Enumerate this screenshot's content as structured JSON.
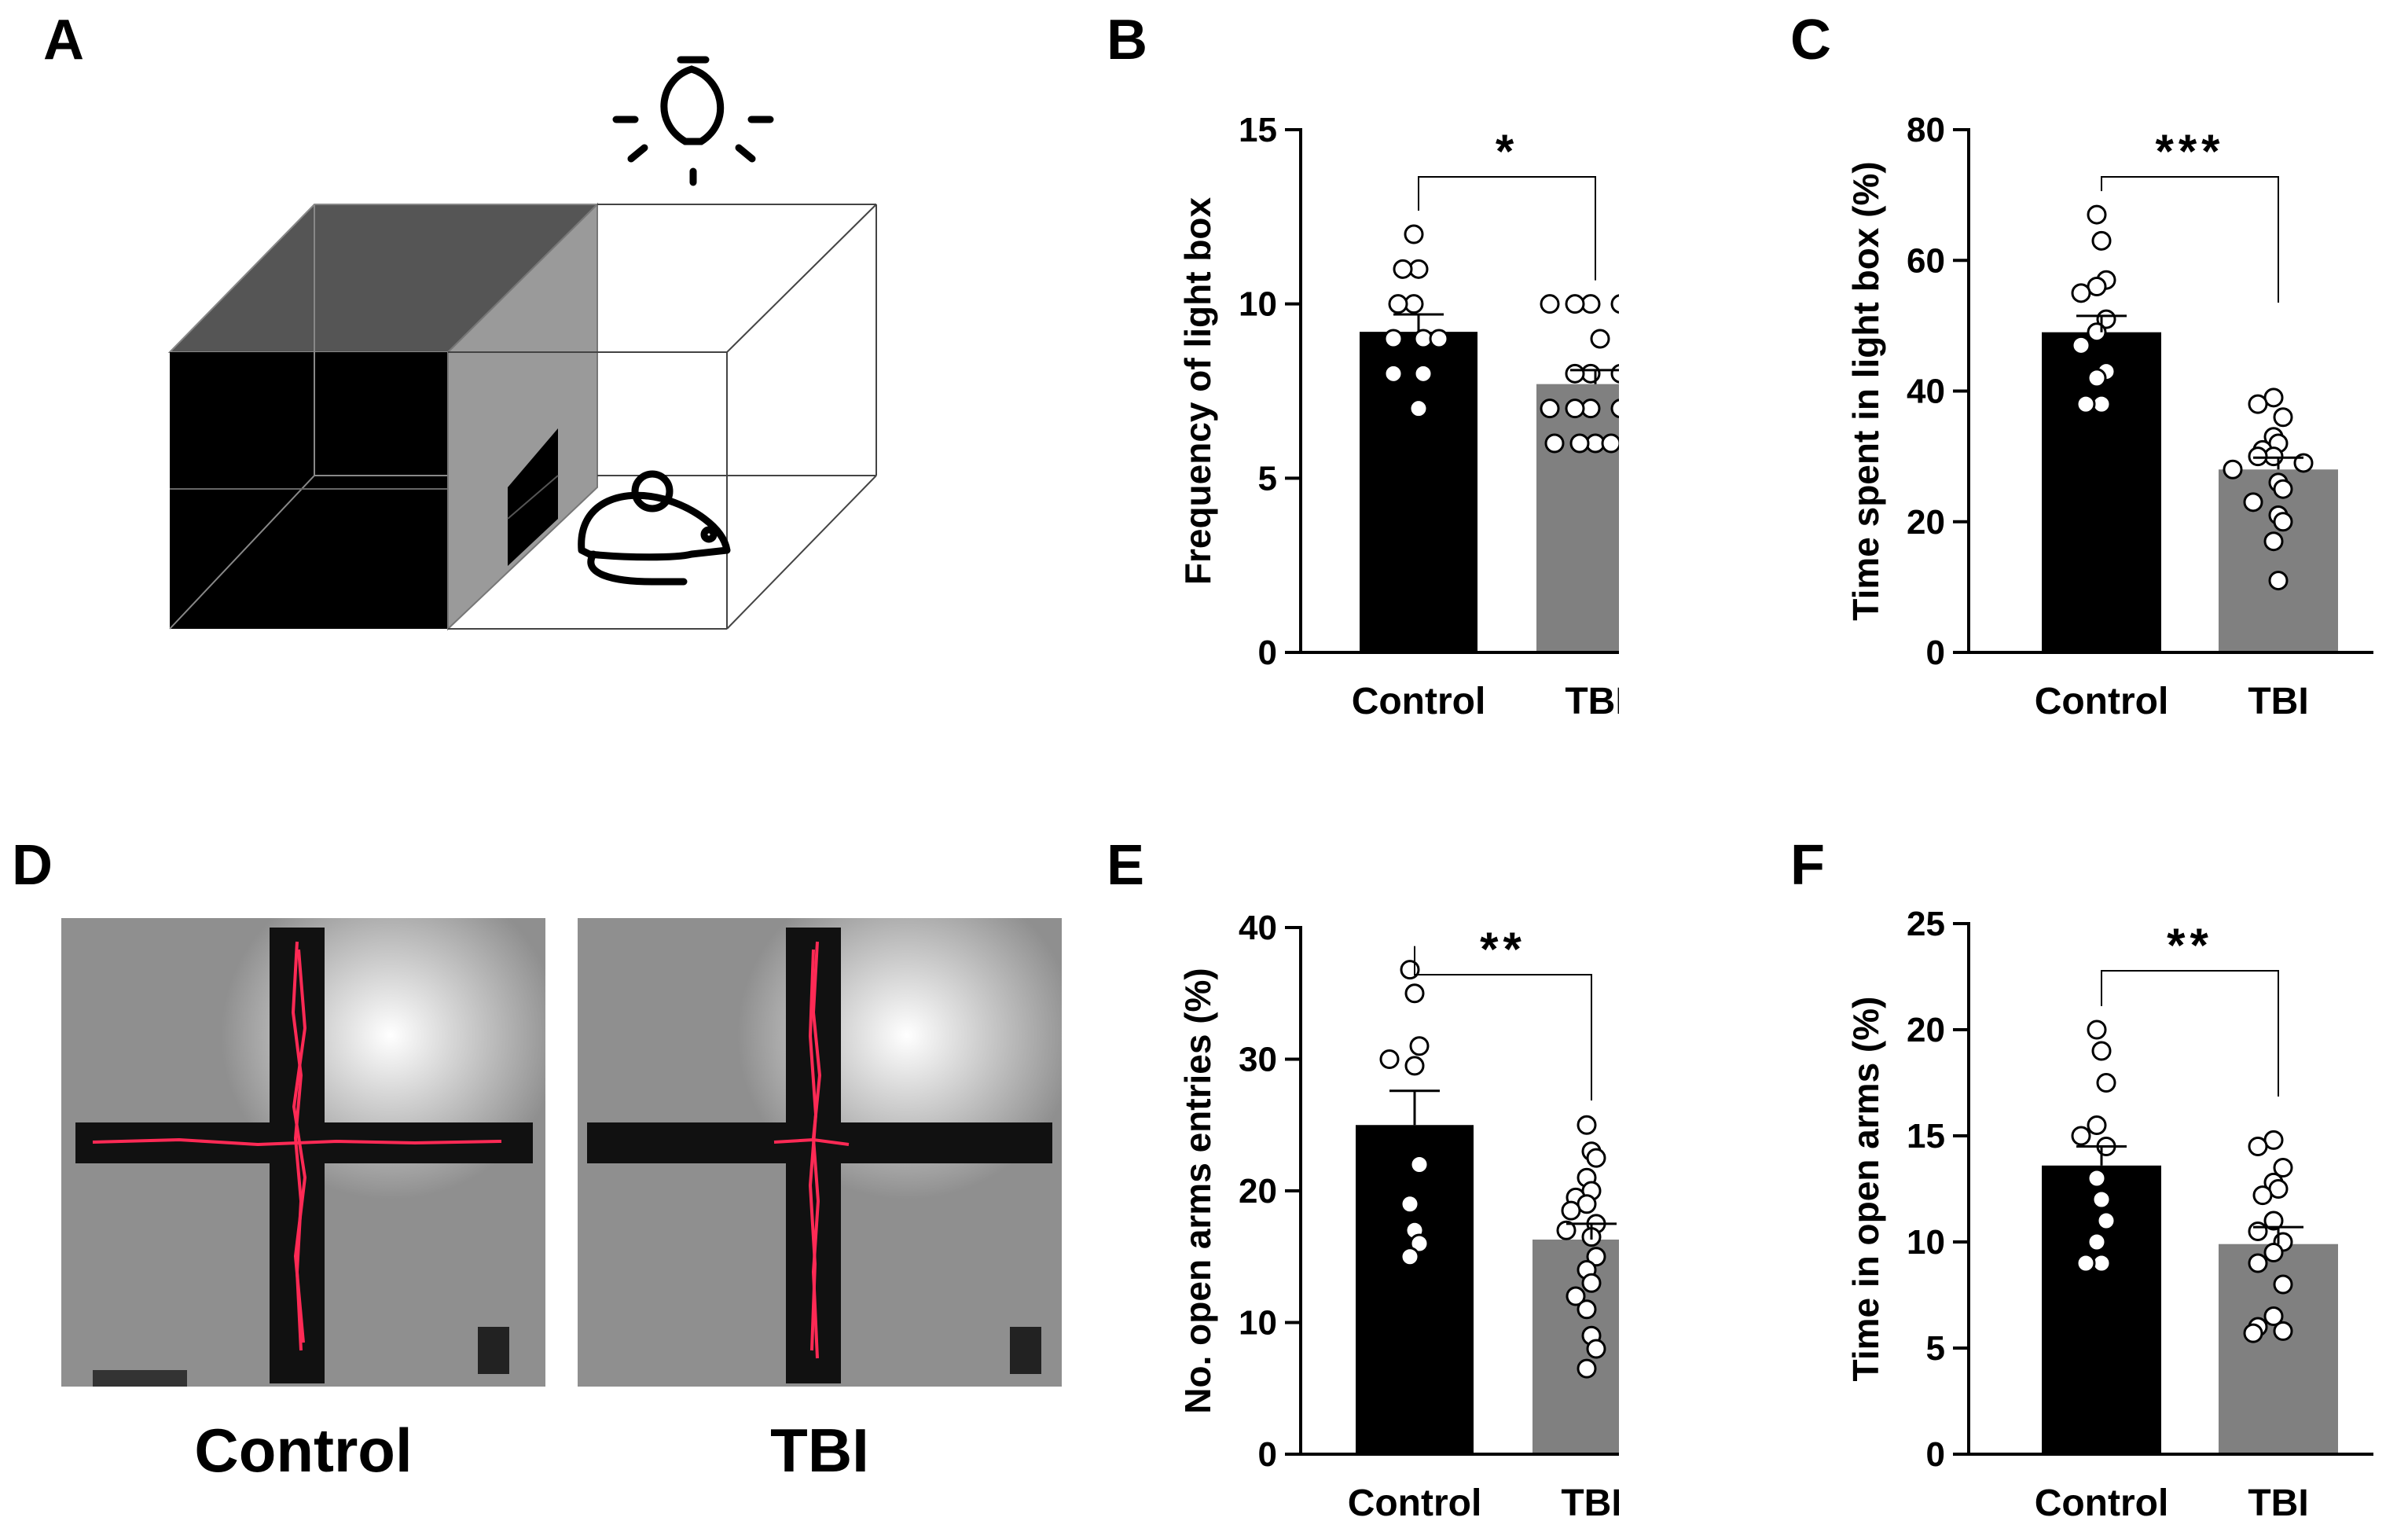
{
  "panels": {
    "A": "A",
    "B": "B",
    "C": "C",
    "D": "D",
    "E": "E",
    "F": "F"
  },
  "maze_labels": {
    "control": "Control",
    "tbi": "TBI"
  },
  "colors": {
    "control": "#000000",
    "tbi": "#808080",
    "point_fill": "#ffffff",
    "track": "#ff2a55"
  },
  "chart_data": [
    {
      "id": "B",
      "type": "bar",
      "ylabel": "Frequency of light box",
      "categories": [
        "Control",
        "TBI"
      ],
      "values": [
        9.2,
        7.7
      ],
      "sem": [
        0.5,
        0.4
      ],
      "ylim": [
        0,
        15
      ],
      "yticks": [
        0,
        5,
        10,
        15
      ],
      "ytick_labels": [
        "0",
        "5",
        "10",
        "15"
      ],
      "significance": "*",
      "points": [
        [
          12,
          11,
          11,
          10,
          10,
          9,
          9,
          9,
          8,
          8,
          7
        ],
        [
          10,
          10,
          10,
          10,
          10,
          9,
          8,
          8,
          8,
          7,
          7,
          7,
          7,
          6,
          6,
          6,
          6
        ]
      ]
    },
    {
      "id": "C",
      "type": "bar",
      "ylabel": "Time spent in light box (%)",
      "categories": [
        "Control",
        "TBI"
      ],
      "values": [
        49,
        28
      ],
      "sem": [
        2.5,
        1.8
      ],
      "ylim": [
        0,
        80
      ],
      "yticks": [
        0,
        20,
        40,
        60,
        80
      ],
      "ytick_labels": [
        "0",
        "20",
        "40",
        "60",
        "80"
      ],
      "significance": "***",
      "points": [
        [
          67,
          63,
          57,
          56,
          55,
          51,
          49,
          47,
          43,
          42,
          38,
          38
        ],
        [
          39,
          38,
          36,
          33,
          32,
          31,
          30,
          30,
          29,
          28,
          26,
          25,
          23,
          21,
          20,
          17,
          11
        ]
      ]
    },
    {
      "id": "E",
      "type": "bar",
      "ylabel": "No. open arms entries (%)",
      "categories": [
        "Control",
        "TBI"
      ],
      "values": [
        25,
        16.3
      ],
      "sem": [
        2.6,
        1.2
      ],
      "ylim": [
        0,
        40
      ],
      "yticks": [
        0,
        10,
        20,
        30,
        40
      ],
      "ytick_labels": [
        "0",
        "10",
        "20",
        "30",
        "40"
      ],
      "significance": "**",
      "points": [
        [
          36.8,
          35,
          31,
          30,
          29.5,
          22,
          19,
          17,
          16,
          15
        ],
        [
          25,
          23,
          22.5,
          21,
          20,
          19.5,
          19,
          18.5,
          17.5,
          17,
          16.5,
          15,
          14,
          13,
          12,
          11,
          9,
          8,
          6.5
        ]
      ]
    },
    {
      "id": "F",
      "type": "bar",
      "ylabel": "Time in open arms (%)",
      "categories": [
        "Control",
        "TBI"
      ],
      "values": [
        13.6,
        9.9
      ],
      "sem": [
        0.9,
        0.8
      ],
      "ylim": [
        0,
        25
      ],
      "yticks": [
        0,
        5,
        10,
        15,
        20,
        25
      ],
      "ytick_labels": [
        "0",
        "5",
        "10",
        "15",
        "20",
        "25"
      ],
      "significance": "**",
      "points": [
        [
          20,
          19,
          17.5,
          15.5,
          15,
          14.5,
          13,
          12,
          11,
          10,
          9,
          9
        ],
        [
          14.8,
          14.5,
          13.5,
          12.8,
          12.5,
          12.2,
          11,
          10.5,
          10,
          9.5,
          9,
          8,
          6.5,
          6,
          5.8,
          5.7
        ]
      ]
    }
  ]
}
